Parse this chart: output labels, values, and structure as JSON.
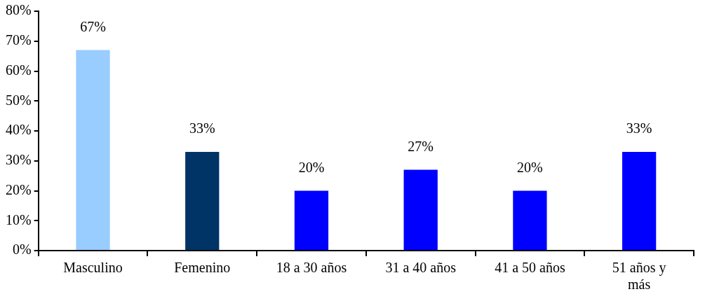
{
  "chart_data": {
    "type": "bar",
    "categories": [
      "Masculino",
      "Femenino",
      "18 a 30 años",
      "31 a 40 años",
      "41 a 50 años",
      "51 años y más"
    ],
    "values": [
      67,
      33,
      20,
      27,
      20,
      33
    ],
    "colors": [
      "#99ccff",
      "#003366",
      "#0000ff",
      "#0000ff",
      "#0000ff",
      "#0000ff"
    ],
    "value_labels": [
      "67%",
      "33%",
      "20%",
      "27%",
      "20%",
      "33%"
    ],
    "ylim": [
      0,
      80
    ],
    "yticks": [
      {
        "value": 0,
        "label": "0%"
      },
      {
        "value": 10,
        "label": "10%"
      },
      {
        "value": 20,
        "label": "20%"
      },
      {
        "value": 30,
        "label": "30%"
      },
      {
        "value": 40,
        "label": "40%"
      },
      {
        "value": 50,
        "label": "50%"
      },
      {
        "value": 60,
        "label": "60%"
      },
      {
        "value": 70,
        "label": "70%"
      },
      {
        "value": 80,
        "label": "80%"
      }
    ]
  }
}
